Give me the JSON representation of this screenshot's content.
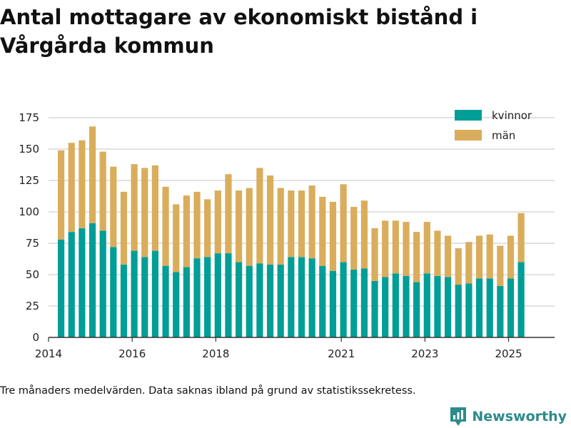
{
  "title": "Antal mottagare av ekonomiskt bistånd i Vårgårda kommun",
  "footnote": "Tre månaders medelvärden. Data saknas ibland på grund av statistikssekretess.",
  "brand": {
    "name": "Newsworthy",
    "icon": "newsworthy-logo-icon"
  },
  "colors": {
    "kvinnor": "#009e96",
    "man": "#d9ad5b",
    "grid": "#d9d9d9",
    "axis": "#333333"
  },
  "chart_data": {
    "type": "bar",
    "stacked": true,
    "x_unit": "year",
    "x_ticks": [
      2014,
      2016,
      2018,
      2021,
      2023,
      2025
    ],
    "xlim": [
      2014,
      2026.1
    ],
    "y_ticks": [
      0,
      25,
      50,
      75,
      100,
      125,
      150,
      175
    ],
    "ylim": [
      0,
      175
    ],
    "grid": true,
    "legend_position": "top-right",
    "x": [
      2014.3,
      2014.55,
      2014.8,
      2015.05,
      2015.3,
      2015.55,
      2015.8,
      2016.05,
      2016.3,
      2016.55,
      2016.8,
      2017.05,
      2017.3,
      2017.55,
      2017.8,
      2018.05,
      2018.3,
      2018.55,
      2018.8,
      2019.05,
      2019.3,
      2019.55,
      2019.8,
      2020.05,
      2020.3,
      2020.55,
      2020.8,
      2021.05,
      2021.3,
      2021.55,
      2021.8,
      2022.05,
      2022.3,
      2022.55,
      2022.8,
      2023.05,
      2023.3,
      2023.55,
      2023.8,
      2024.05,
      2024.3,
      2024.55,
      2024.8,
      2025.05,
      2025.3
    ],
    "series": [
      {
        "name": "kvinnor",
        "values": [
          78,
          84,
          87,
          91,
          85,
          72,
          58,
          69,
          64,
          69,
          57,
          52,
          56,
          63,
          64,
          67,
          67,
          60,
          57,
          59,
          58,
          58,
          64,
          64,
          63,
          57,
          53,
          60,
          54,
          55,
          45,
          48,
          51,
          49,
          44,
          51,
          49,
          48,
          42,
          43,
          47,
          47,
          41,
          47,
          60
        ]
      },
      {
        "name": "män",
        "values": [
          71,
          71,
          70,
          77,
          63,
          64,
          58,
          69,
          71,
          68,
          63,
          54,
          57,
          53,
          46,
          50,
          63,
          57,
          62,
          76,
          71,
          61,
          53,
          53,
          58,
          55,
          55,
          62,
          50,
          54,
          42,
          45,
          42,
          43,
          40,
          41,
          36,
          33,
          29,
          33,
          34,
          35,
          32,
          34,
          39
        ]
      }
    ]
  }
}
